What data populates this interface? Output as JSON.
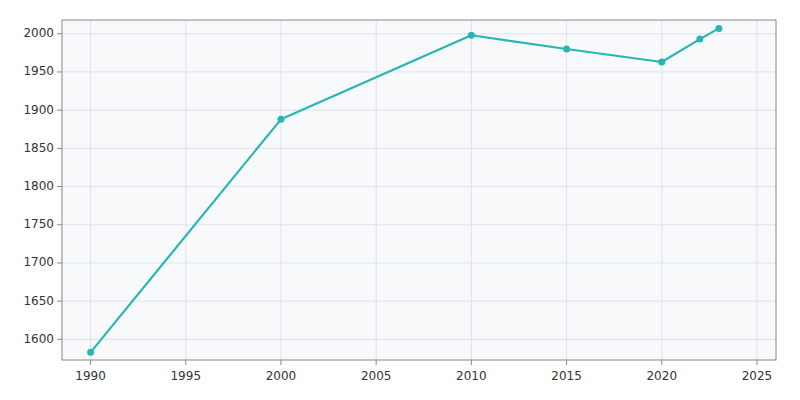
{
  "chart_data": {
    "type": "line",
    "x": [
      1990,
      2000,
      2010,
      2015,
      2020,
      2022,
      2023
    ],
    "values": [
      1583,
      1888,
      1998,
      1980,
      1963,
      1993,
      2007
    ],
    "color": "#2ab5b5",
    "marker": "circle",
    "xlim": [
      1988.5,
      2026
    ],
    "ylim": [
      1573,
      2018
    ],
    "xticks": [
      1990,
      1995,
      2000,
      2005,
      2010,
      2015,
      2020,
      2025
    ],
    "yticks": [
      1600,
      1650,
      1700,
      1750,
      1800,
      1850,
      1900,
      1950,
      2000
    ],
    "grid": true
  }
}
